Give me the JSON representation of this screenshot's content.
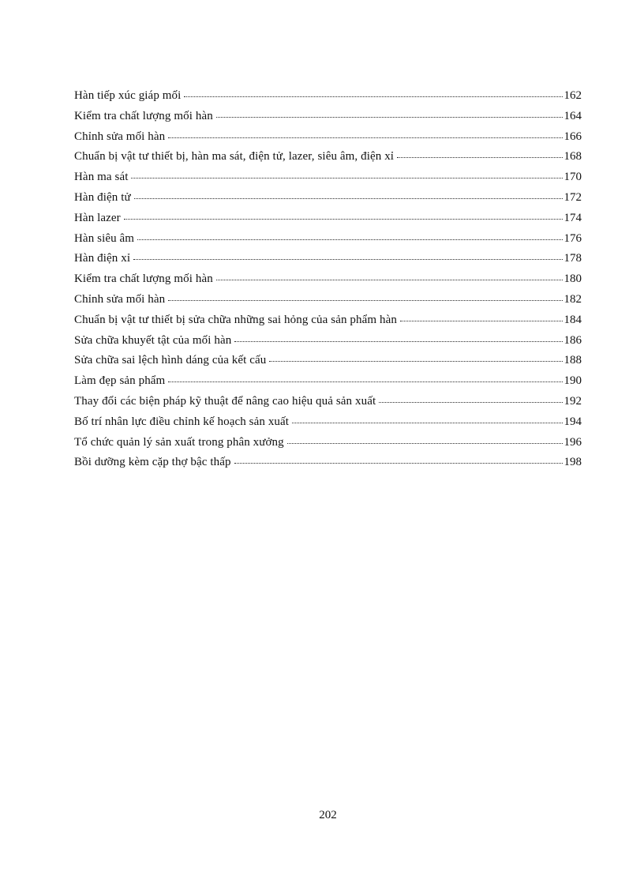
{
  "document": {
    "footer_page_number": "202"
  },
  "toc": {
    "entries": [
      {
        "title": "Hàn tiếp xúc giáp mối",
        "page": "162"
      },
      {
        "title": "Kiểm tra chất lượng mối hàn",
        "page": "164"
      },
      {
        "title": "Chỉnh sửa mối hàn",
        "page": "166"
      },
      {
        "title": "Chuẩn bị vật tư thiết bị, hàn ma sát, điện tử, lazer, siêu âm, điện xỉ",
        "page": "168"
      },
      {
        "title": "Hàn ma sát",
        "page": "170"
      },
      {
        "title": "Hàn điện tử",
        "page": "172"
      },
      {
        "title": "Hàn lazer",
        "page": "174"
      },
      {
        "title": "Hàn siêu âm",
        "page": "176"
      },
      {
        "title": "Hàn điện xỉ",
        "page": "178"
      },
      {
        "title": "Kiểm tra chất lượng mối hàn",
        "page": "180"
      },
      {
        "title": "Chỉnh sửa mối hàn",
        "page": "182"
      },
      {
        "title": "Chuẩn bị vật tư thiết bị sửa chữa những sai hỏng của sản phẩm hàn",
        "page": "184"
      },
      {
        "title": "Sửa chữa khuyết tật của mối hàn",
        "page": "186"
      },
      {
        "title": "Sửa chữa sai lệch hình dáng của kết cấu",
        "page": "188"
      },
      {
        "title": "Làm đẹp sản phẩm",
        "page": "190"
      },
      {
        "title": "Thay đổi các biện pháp kỹ thuật để nâng cao hiệu quả sản xuất",
        "page": "192"
      },
      {
        "title": "Bố trí nhân lực điều chỉnh kế hoạch sản xuất",
        "page": "194"
      },
      {
        "title": "Tổ chức quản lý sản xuất trong phân xưởng",
        "page": "196"
      },
      {
        "title": "Bồi dưỡng kèm cặp thợ bậc thấp",
        "page": "198"
      }
    ]
  }
}
